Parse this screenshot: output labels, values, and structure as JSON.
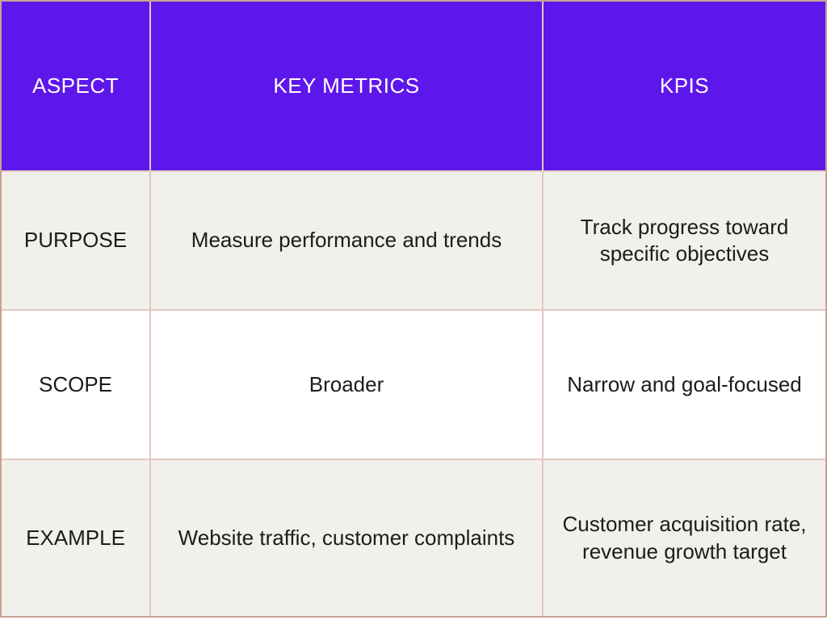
{
  "page": {
    "background": "#ffffff"
  },
  "table": {
    "title": "Key Metrics vs KPIs comparison table",
    "colors": {
      "header_bg": "#5e17eb",
      "header_text": "#ffffff",
      "row_beige_bg": "#f2f0eb",
      "row_white_bg": "#ffffff",
      "body_text": "#1c1c1c",
      "gridline": "#e2c9c2",
      "outer_border": "#c9a193"
    },
    "header": {
      "bg": "#5e17eb",
      "text_color": "#ffffff",
      "columns": [
        "ASPECT",
        "KEY METRICS",
        "KPIS"
      ]
    },
    "rows": [
      {
        "bg": "#f2f0eb",
        "aspect": "PURPOSE",
        "key_metrics": "Measure performance and trends",
        "kpis": "Track progress toward\nspecific objectives"
      },
      {
        "bg": "#ffffff",
        "aspect": "SCOPE",
        "key_metrics": "Broader",
        "kpis": "Narrow and goal-focused"
      },
      {
        "bg": "#f2f0eb",
        "aspect": "EXAMPLE",
        "key_metrics": "Website traffic, customer complaints",
        "kpis": "Customer acquisition rate,\nrevenue growth target"
      }
    ]
  }
}
